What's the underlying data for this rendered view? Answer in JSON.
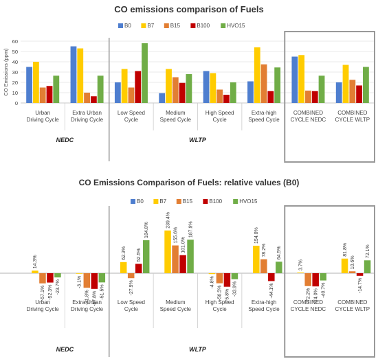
{
  "chart_data": [
    {
      "type": "bar",
      "title": "CO emissions comparison of Fuels",
      "ylabel": "CO Emissions (ppm)",
      "ylim": [
        0,
        60
      ],
      "yticks": [
        0,
        10,
        20,
        30,
        40,
        50,
        60
      ],
      "grid": true,
      "legend_position": "top",
      "categories": [
        "Urban Driving Cycle",
        "Extra Urban Driving Cycle",
        "Low Speed Cycle",
        "Medium Speed Cycle",
        "High Speed Cycle",
        "Extra-high Speed Cycle",
        "COMBINED CYCLE NEDC",
        "COMBINED CYCLE WLTP"
      ],
      "groups": [
        {
          "label": "NEDC",
          "categories": [
            0,
            1
          ]
        },
        {
          "label": "WLTP",
          "categories": [
            2,
            3,
            4,
            5
          ]
        }
      ],
      "series": [
        {
          "name": "B0",
          "color": "#4e7ecf",
          "values": [
            35,
            55,
            20,
            9.5,
            31,
            21,
            45,
            20
          ]
        },
        {
          "name": "B7",
          "color": "#ffcc00",
          "values": [
            40,
            53,
            33,
            33,
            29,
            54,
            46.5,
            37
          ]
        },
        {
          "name": "B15",
          "color": "#e27e33",
          "values": [
            15,
            10,
            15,
            25,
            13,
            37.5,
            12,
            22.5
          ]
        },
        {
          "name": "B100",
          "color": "#c00000",
          "values": [
            16.5,
            6.5,
            31,
            19.5,
            8,
            11.5,
            11.5,
            17
          ]
        },
        {
          "name": "HVO15",
          "color": "#70ad47",
          "values": [
            26.5,
            26.5,
            58,
            28,
            20,
            34.5,
            26.5,
            35
          ]
        }
      ]
    },
    {
      "type": "bar",
      "title": "CO Emissions Comparison of Fuels: relative values (B0)",
      "categories": [
        "Urban Driving Cycle",
        "Extra Urban Driving Cycle",
        "Low Speed Cycle",
        "Medium Speed Cycle",
        "High Speed Cycle",
        "Extra-high Speed Cycle",
        "COMBINED CYCLE NEDC",
        "COMBINED CYCLE WLTP"
      ],
      "groups": [
        {
          "label": "NEDC",
          "categories": [
            0,
            1
          ]
        },
        {
          "label": "WLTP",
          "categories": [
            2,
            3,
            4,
            5
          ]
        }
      ],
      "legend_position": "top",
      "series": [
        {
          "name": "B0",
          "color": "#4e7ecf",
          "values": [
            0,
            0,
            0,
            0,
            0,
            0,
            0,
            0
          ]
        },
        {
          "name": "B7",
          "color": "#ffcc00",
          "values": [
            14.3,
            -3.1,
            62.3,
            239.4,
            -4.8,
            154.0,
            3.7,
            81.8
          ]
        },
        {
          "name": "B15",
          "color": "#e27e33",
          "values": [
            -57.1,
            -81.8,
            -27.9,
            155.6,
            -56.5,
            78.2,
            -72.2,
            10.6
          ]
        },
        {
          "name": "B100",
          "color": "#c00000",
          "values": [
            -52.3,
            -87.8,
            52.5,
            101.0,
            -75.8,
            -44.1,
            -74.0,
            -14.7
          ]
        },
        {
          "name": "HVO15",
          "color": "#70ad47",
          "values": [
            -23.7,
            -51.5,
            184.8,
            187.9,
            -33.9,
            64.5,
            -40.7,
            72.1
          ]
        }
      ],
      "data_labels": [
        [
          "",
          "14.3%",
          "-57.1%",
          "-52.3%",
          "-23.7%"
        ],
        [
          "",
          "-3.1%",
          "-81.8%",
          "-87.8%",
          "-51.5%"
        ],
        [
          "",
          "62.3%",
          "-27.9%",
          "52.5%",
          "184.8%"
        ],
        [
          "",
          "239.4%",
          "155.6%",
          "101.0%",
          "187.9%"
        ],
        [
          "",
          "-4.8%",
          "-56.5%",
          "-75.8%",
          "-33.9%"
        ],
        [
          "",
          "154.0%",
          "78.2%",
          "-44.1%",
          "64.5%"
        ],
        [
          "",
          "3.7%",
          "-72.2%",
          "-74.0%",
          "-40.7%"
        ],
        [
          "",
          "81.8%",
          "10.6%",
          "-14.7%",
          "72.1%"
        ]
      ]
    }
  ]
}
